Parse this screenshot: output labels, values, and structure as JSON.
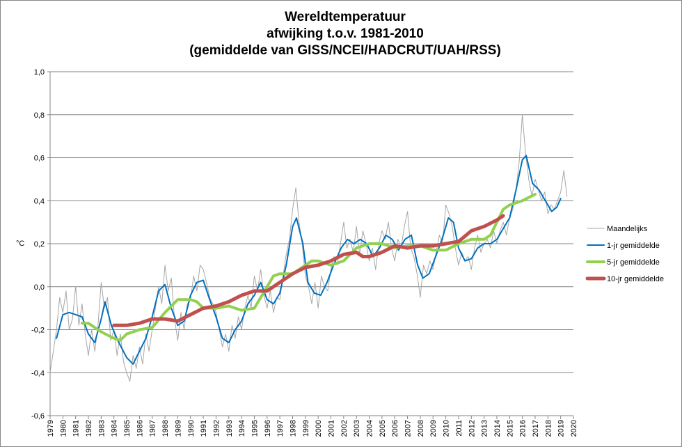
{
  "chart_data": {
    "type": "line",
    "title": [
      "Wereldtemperatuur",
      "afwijking t.o.v. 1981-2010",
      "(gemiddelde van GISS/NCEI/HADCRUT/UAH/RSS)"
    ],
    "xlabel": "",
    "ylabel": "°C",
    "xlim": [
      1979,
      2020
    ],
    "ylim": [
      -0.6,
      1.0
    ],
    "grid": true,
    "legend_position": "right",
    "x_ticks": [
      "1979",
      "1980",
      "1981",
      "1982",
      "1983",
      "1984",
      "1985",
      "1986",
      "1987",
      "1988",
      "1989",
      "1990",
      "1991",
      "1992",
      "1993",
      "1994",
      "1995",
      "1996",
      "1997",
      "1998",
      "1999",
      "2000",
      "2001",
      "2002",
      "2003",
      "2004",
      "2005",
      "2006",
      "2007",
      "2008",
      "2009",
      "2010",
      "2011",
      "2012",
      "2013",
      "2014",
      "2015",
      "2016",
      "2017",
      "2018",
      "2019",
      "2020"
    ],
    "y_ticks": [
      {
        "v": 1.0,
        "label": "1,0"
      },
      {
        "v": 0.8,
        "label": "0,8"
      },
      {
        "v": 0.6,
        "label": "0,6"
      },
      {
        "v": 0.4,
        "label": "0,4"
      },
      {
        "v": 0.2,
        "label": "0,2"
      },
      {
        "v": 0.0,
        "label": "0,0"
      },
      {
        "v": -0.2,
        "label": "-0,2"
      },
      {
        "v": -0.4,
        "label": "-0,4"
      },
      {
        "v": -0.6,
        "label": "-0,6"
      }
    ],
    "series": [
      {
        "name": "Maandelijks",
        "color": "#a6a6a6",
        "width": 1,
        "x_start": 1979.0,
        "x_step": 0.25,
        "values": [
          -0.4,
          -0.3,
          -0.2,
          -0.05,
          -0.12,
          -0.02,
          -0.2,
          -0.15,
          0.0,
          -0.18,
          -0.08,
          -0.22,
          -0.32,
          -0.2,
          -0.3,
          -0.18,
          0.02,
          -0.1,
          -0.05,
          -0.25,
          -0.2,
          -0.32,
          -0.22,
          -0.35,
          -0.4,
          -0.44,
          -0.32,
          -0.38,
          -0.28,
          -0.36,
          -0.22,
          -0.3,
          -0.2,
          -0.1,
          0.0,
          -0.08,
          0.1,
          -0.02,
          0.04,
          -0.15,
          -0.25,
          -0.12,
          -0.2,
          -0.08,
          -0.06,
          0.05,
          -0.02,
          0.1,
          0.08,
          0.02,
          -0.05,
          -0.08,
          -0.12,
          -0.2,
          -0.28,
          -0.22,
          -0.3,
          -0.18,
          -0.24,
          -0.14,
          -0.2,
          -0.1,
          -0.04,
          -0.1,
          0.05,
          -0.02,
          0.08,
          -0.04,
          -0.1,
          -0.02,
          -0.12,
          -0.05,
          -0.06,
          0.05,
          0.15,
          0.22,
          0.36,
          0.46,
          0.3,
          0.2,
          0.05,
          0.0,
          -0.08,
          0.02,
          -0.1,
          0.05,
          0.0,
          -0.02,
          0.08,
          0.14,
          0.1,
          0.2,
          0.3,
          0.18,
          0.22,
          0.16,
          0.28,
          0.15,
          0.26,
          0.2,
          0.12,
          0.18,
          0.08,
          0.2,
          0.26,
          0.22,
          0.3,
          0.18,
          0.12,
          0.22,
          0.18,
          0.28,
          0.35,
          0.18,
          0.14,
          0.06,
          -0.05,
          0.1,
          0.06,
          0.12,
          0.08,
          0.16,
          0.24,
          0.2,
          0.38,
          0.34,
          0.28,
          0.18,
          0.1,
          0.16,
          0.12,
          0.14,
          0.08,
          0.18,
          0.24,
          0.16,
          0.2,
          0.22,
          0.18,
          0.26,
          0.2,
          0.26,
          0.3,
          0.24,
          0.32,
          0.36,
          0.45,
          0.58,
          0.8,
          0.62,
          0.5,
          0.42,
          0.5,
          0.45,
          0.4,
          0.44,
          0.34,
          0.38,
          0.36,
          0.4,
          0.44,
          0.54,
          0.42
        ]
      },
      {
        "name": "1-jr gemiddelde",
        "color": "#0070c0",
        "width": 2,
        "points": [
          [
            1979.5,
            -0.24
          ],
          [
            1980,
            -0.13
          ],
          [
            1980.5,
            -0.12
          ],
          [
            1981,
            -0.13
          ],
          [
            1981.5,
            -0.14
          ],
          [
            1982,
            -0.22
          ],
          [
            1982.5,
            -0.26
          ],
          [
            1983,
            -0.15
          ],
          [
            1983.3,
            -0.07
          ],
          [
            1983.8,
            -0.18
          ],
          [
            1984.3,
            -0.25
          ],
          [
            1985,
            -0.33
          ],
          [
            1985.5,
            -0.36
          ],
          [
            1986,
            -0.3
          ],
          [
            1986.5,
            -0.24
          ],
          [
            1987,
            -0.14
          ],
          [
            1987.5,
            -0.02
          ],
          [
            1988,
            0.01
          ],
          [
            1988.5,
            -0.1
          ],
          [
            1989,
            -0.18
          ],
          [
            1989.5,
            -0.16
          ],
          [
            1990,
            -0.04
          ],
          [
            1990.5,
            0.02
          ],
          [
            1991,
            0.03
          ],
          [
            1991.5,
            -0.06
          ],
          [
            1992,
            -0.14
          ],
          [
            1992.5,
            -0.24
          ],
          [
            1993,
            -0.26
          ],
          [
            1993.5,
            -0.2
          ],
          [
            1994,
            -0.16
          ],
          [
            1994.5,
            -0.08
          ],
          [
            1995,
            -0.04
          ],
          [
            1995.5,
            0.02
          ],
          [
            1996,
            -0.06
          ],
          [
            1996.5,
            -0.08
          ],
          [
            1997,
            -0.03
          ],
          [
            1997.5,
            0.1
          ],
          [
            1998,
            0.28
          ],
          [
            1998.3,
            0.32
          ],
          [
            1998.8,
            0.2
          ],
          [
            1999.2,
            0.02
          ],
          [
            1999.7,
            -0.03
          ],
          [
            2000.2,
            -0.04
          ],
          [
            2000.7,
            0.02
          ],
          [
            2001.2,
            0.1
          ],
          [
            2001.8,
            0.18
          ],
          [
            2002.3,
            0.22
          ],
          [
            2002.8,
            0.2
          ],
          [
            2003.3,
            0.22
          ],
          [
            2003.8,
            0.2
          ],
          [
            2004.3,
            0.14
          ],
          [
            2004.8,
            0.18
          ],
          [
            2005.3,
            0.24
          ],
          [
            2005.8,
            0.22
          ],
          [
            2006.3,
            0.17
          ],
          [
            2006.8,
            0.22
          ],
          [
            2007.3,
            0.24
          ],
          [
            2007.8,
            0.1
          ],
          [
            2008.2,
            0.04
          ],
          [
            2008.7,
            0.06
          ],
          [
            2009.2,
            0.14
          ],
          [
            2009.7,
            0.22
          ],
          [
            2010.2,
            0.32
          ],
          [
            2010.6,
            0.3
          ],
          [
            2011,
            0.18
          ],
          [
            2011.5,
            0.12
          ],
          [
            2012,
            0.13
          ],
          [
            2012.5,
            0.18
          ],
          [
            2013,
            0.2
          ],
          [
            2013.5,
            0.2
          ],
          [
            2014,
            0.22
          ],
          [
            2014.5,
            0.27
          ],
          [
            2015,
            0.32
          ],
          [
            2015.5,
            0.45
          ],
          [
            2016,
            0.59
          ],
          [
            2016.3,
            0.61
          ],
          [
            2016.8,
            0.48
          ],
          [
            2017.3,
            0.45
          ],
          [
            2017.8,
            0.4
          ],
          [
            2018.3,
            0.35
          ],
          [
            2018.7,
            0.37
          ],
          [
            2019,
            0.41
          ]
        ]
      },
      {
        "name": "5-jr gemiddelde",
        "color": "#92d050",
        "width": 4,
        "points": [
          [
            1981.5,
            -0.17
          ],
          [
            1982,
            -0.17
          ],
          [
            1983,
            -0.21
          ],
          [
            1984,
            -0.24
          ],
          [
            1984.5,
            -0.25
          ],
          [
            1985,
            -0.22
          ],
          [
            1986,
            -0.2
          ],
          [
            1987,
            -0.19
          ],
          [
            1988,
            -0.12
          ],
          [
            1989,
            -0.06
          ],
          [
            1990,
            -0.06
          ],
          [
            1990.5,
            -0.07
          ],
          [
            1991,
            -0.1
          ],
          [
            1992,
            -0.1
          ],
          [
            1993,
            -0.09
          ],
          [
            1994,
            -0.11
          ],
          [
            1995,
            -0.1
          ],
          [
            1996,
            0.0
          ],
          [
            1996.5,
            0.05
          ],
          [
            1997,
            0.06
          ],
          [
            1998,
            0.06
          ],
          [
            1999,
            0.1
          ],
          [
            1999.5,
            0.12
          ],
          [
            2000,
            0.12
          ],
          [
            2000.5,
            0.11
          ],
          [
            2001,
            0.1
          ],
          [
            2002,
            0.12
          ],
          [
            2003,
            0.18
          ],
          [
            2004,
            0.2
          ],
          [
            2005,
            0.2
          ],
          [
            2006,
            0.18
          ],
          [
            2007,
            0.19
          ],
          [
            2008,
            0.19
          ],
          [
            2009,
            0.17
          ],
          [
            2010,
            0.17
          ],
          [
            2011,
            0.2
          ],
          [
            2012,
            0.22
          ],
          [
            2013,
            0.22
          ],
          [
            2013.5,
            0.24
          ],
          [
            2014,
            0.3
          ],
          [
            2014.5,
            0.36
          ],
          [
            2015,
            0.38
          ],
          [
            2016,
            0.4
          ],
          [
            2017,
            0.43
          ]
        ]
      },
      {
        "name": "10-jr gemiddelde",
        "color": "#c0504d",
        "width": 5,
        "points": [
          [
            1984,
            -0.18
          ],
          [
            1985,
            -0.18
          ],
          [
            1986,
            -0.17
          ],
          [
            1987,
            -0.15
          ],
          [
            1988,
            -0.15
          ],
          [
            1989,
            -0.16
          ],
          [
            1990,
            -0.13
          ],
          [
            1991,
            -0.1
          ],
          [
            1992,
            -0.09
          ],
          [
            1993,
            -0.07
          ],
          [
            1994,
            -0.04
          ],
          [
            1995,
            -0.02
          ],
          [
            1996,
            -0.02
          ],
          [
            1997,
            0.02
          ],
          [
            1998,
            0.06
          ],
          [
            1999,
            0.09
          ],
          [
            2000,
            0.1
          ],
          [
            2001,
            0.12
          ],
          [
            2002,
            0.15
          ],
          [
            2003,
            0.16
          ],
          [
            2003.5,
            0.14
          ],
          [
            2004,
            0.14
          ],
          [
            2005,
            0.16
          ],
          [
            2006,
            0.19
          ],
          [
            2007,
            0.18
          ],
          [
            2008,
            0.19
          ],
          [
            2009,
            0.19
          ],
          [
            2010,
            0.2
          ],
          [
            2011,
            0.21
          ],
          [
            2012,
            0.26
          ],
          [
            2013,
            0.28
          ],
          [
            2014,
            0.31
          ],
          [
            2014.5,
            0.33
          ]
        ]
      }
    ]
  }
}
